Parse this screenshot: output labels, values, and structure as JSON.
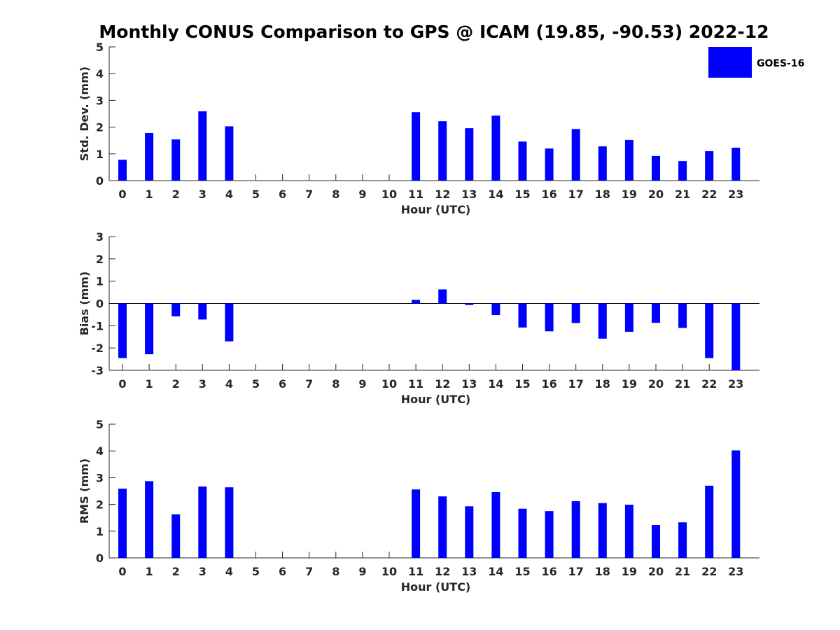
{
  "title": "Monthly CONUS Comparison to GPS @ ICAM (19.85, -90.53) 2022-12",
  "chart_data": {
    "type": "bar",
    "title": "Monthly CONUS Comparison to GPS @ ICAM (19.85, -90.53) 2022-12",
    "legend": {
      "entries": [
        "GOES-16"
      ],
      "placement": "top-right",
      "color": "#0000ff"
    },
    "series_color": "#0000ff",
    "categories": [
      "0",
      "1",
      "2",
      "3",
      "4",
      "5",
      "6",
      "7",
      "8",
      "9",
      "10",
      "11",
      "12",
      "13",
      "14",
      "15",
      "16",
      "17",
      "18",
      "19",
      "20",
      "21",
      "22",
      "23"
    ],
    "subplots": [
      {
        "name": "GOES-16",
        "ylabel": "Std. Dev. (mm)",
        "xlabel": "Hour (UTC)",
        "ylim": [
          0,
          5
        ],
        "yticks": [
          0,
          1,
          2,
          3,
          4,
          5
        ],
        "values": [
          0.78,
          1.78,
          1.54,
          2.59,
          2.03,
          null,
          null,
          null,
          null,
          null,
          null,
          2.56,
          2.22,
          1.96,
          2.43,
          1.46,
          1.2,
          1.93,
          1.28,
          1.52,
          0.92,
          0.73,
          1.1,
          1.23
        ]
      },
      {
        "name": "GOES-16",
        "ylabel": "Bias (mm)",
        "xlabel": "Hour (UTC)",
        "ylim": [
          -3,
          3
        ],
        "yticks": [
          -3,
          -2,
          -1,
          0,
          1,
          2,
          3
        ],
        "values": [
          -2.45,
          -2.28,
          -0.58,
          -0.72,
          -1.7,
          null,
          null,
          null,
          null,
          null,
          null,
          0.16,
          0.63,
          -0.07,
          -0.52,
          -1.08,
          -1.25,
          -0.88,
          -1.58,
          -1.27,
          -0.87,
          -1.1,
          -2.45,
          -3.0
        ]
      },
      {
        "name": "GOES-16",
        "ylabel": "RMS (mm)",
        "xlabel": "Hour (UTC)",
        "ylim": [
          0,
          5
        ],
        "yticks": [
          0,
          1,
          2,
          3,
          4,
          5
        ],
        "values": [
          2.59,
          2.87,
          1.63,
          2.67,
          2.64,
          null,
          null,
          null,
          null,
          null,
          null,
          2.56,
          2.3,
          1.93,
          2.46,
          1.84,
          1.75,
          2.12,
          2.05,
          1.99,
          1.23,
          1.33,
          2.7,
          4.02
        ]
      }
    ]
  }
}
